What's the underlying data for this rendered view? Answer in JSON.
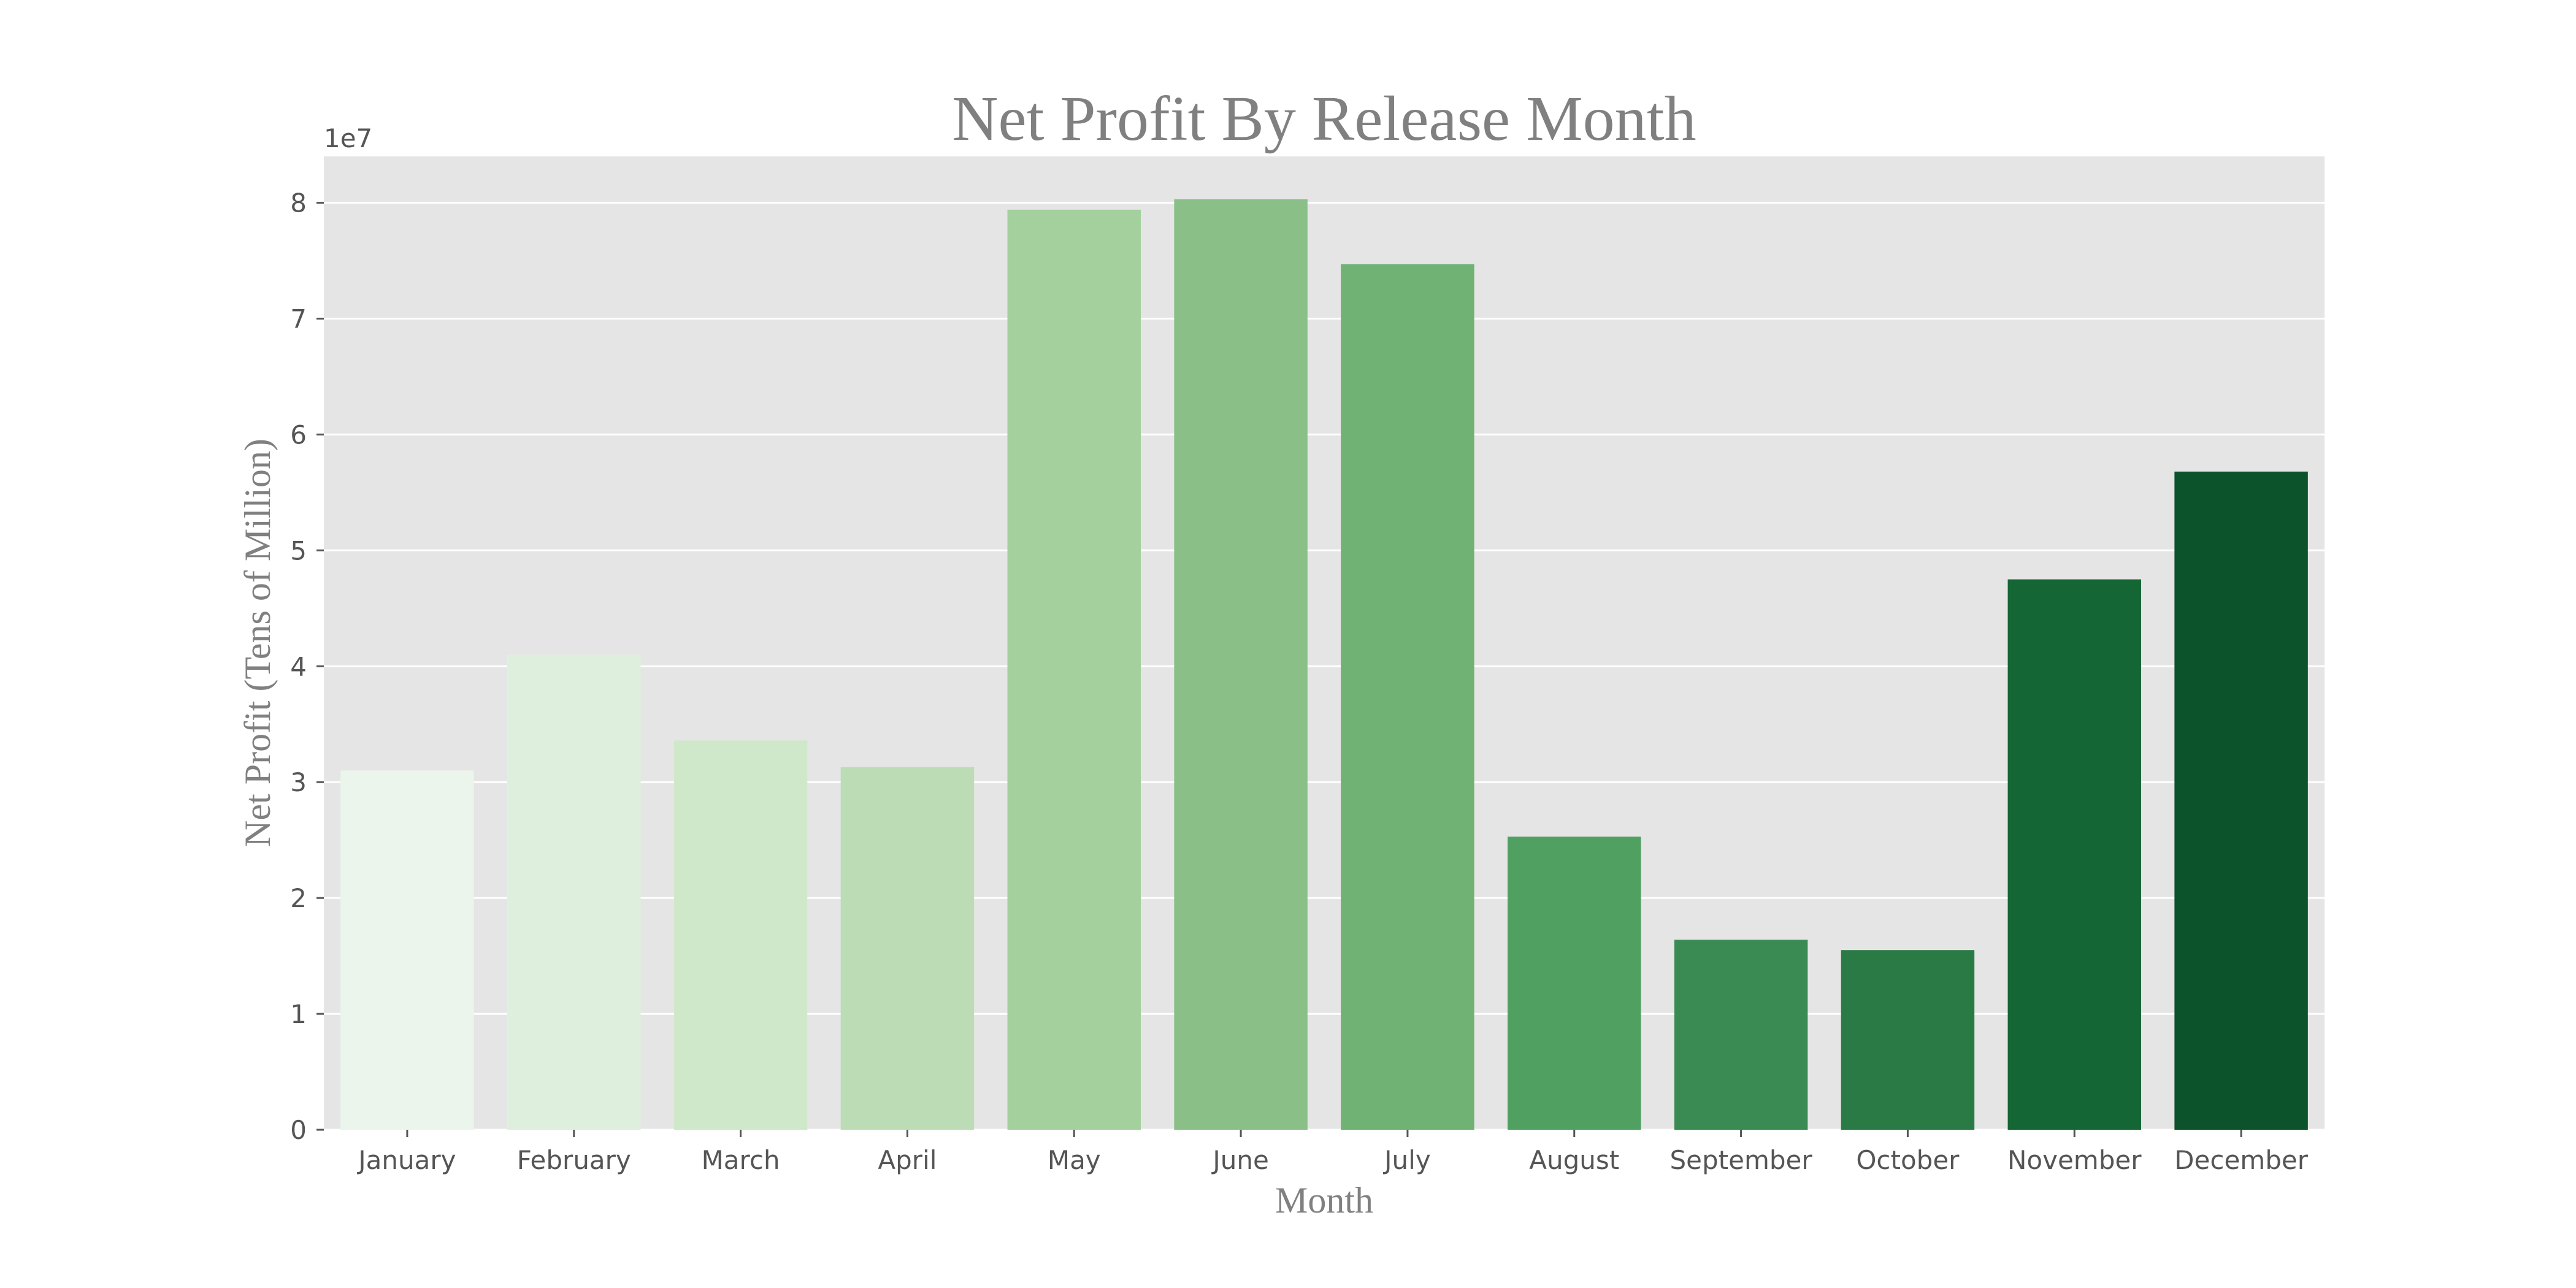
{
  "chart_data": {
    "type": "bar",
    "title": "Net Profit By Release Month",
    "xlabel": "Month",
    "ylabel": "Net Profit (Tens of Million)",
    "y_offset_label": "1e7",
    "categories": [
      "January",
      "February",
      "March",
      "April",
      "May",
      "June",
      "July",
      "August",
      "September",
      "October",
      "November",
      "December"
    ],
    "values": [
      31000000,
      41000000,
      33600000,
      31300000,
      79400000,
      80300000,
      74700000,
      25300000,
      16400000,
      15500000,
      47500000,
      56800000
    ],
    "ylim": [
      0,
      84000000
    ],
    "yticks": [
      0,
      10000000,
      20000000,
      30000000,
      40000000,
      50000000,
      60000000,
      70000000,
      80000000
    ],
    "ytick_labels": [
      "0",
      "1",
      "2",
      "3",
      "4",
      "5",
      "6",
      "7",
      "8"
    ],
    "grid": true,
    "plot_background": "#e5e5e5",
    "grid_color": "#ffffff",
    "bar_colors": [
      "#ebf5eb",
      "#dfefdd",
      "#cfe8ca",
      "#bcdcb6",
      "#a3d09d",
      "#8ac088",
      "#70b174",
      "#50a062",
      "#3a8b53",
      "#2a7a45",
      "#146634",
      "#0c522a"
    ]
  }
}
